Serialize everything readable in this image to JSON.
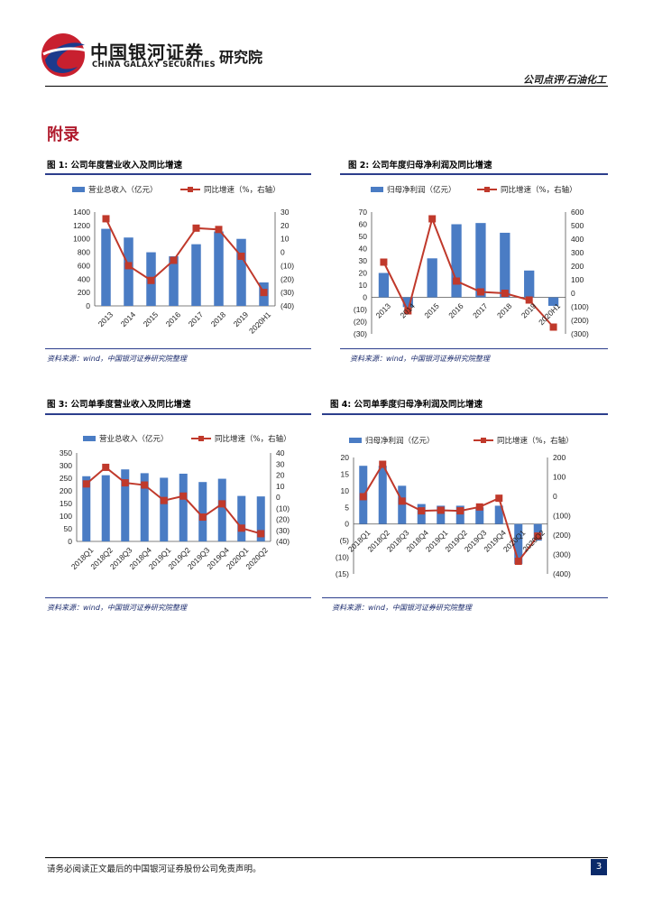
{
  "header": {
    "brand_cn": "中国银河证券",
    "brand_inst": "研究院",
    "brand_en": "CHINA GALAXY SECURITIES",
    "right_label": "公司点评/石油化工"
  },
  "section_title": "附录",
  "figures": [
    {
      "title": "图 1:  公司年度营业收入及同比增速",
      "source": "资料来源：wind，中国银河证券研究院整理"
    },
    {
      "title": "图 2:  公司年度归母净利润及同比增速",
      "source": "资料来源：wind，中国银河证券研究院整理"
    },
    {
      "title": "图 3:  公司单季度营业收入及同比增速",
      "source": "资料来源：wind，中国银河证券研究院整理"
    },
    {
      "title": "图 4:  公司单季度归母净利润及同比增速",
      "source": "资料来源：wind，中国银河证券研究院整理"
    }
  ],
  "footer": {
    "disclaimer": "请务必阅读正文最后的中国银河证券股份公司免责声明。",
    "page_number": "3"
  },
  "colors": {
    "bar": "#4a7cc4",
    "line": "#c0392b"
  },
  "chart_data": [
    {
      "type": "bar",
      "categories": [
        "2013",
        "2014",
        "2015",
        "2016",
        "2017",
        "2018",
        "2019",
        "2020H1"
      ],
      "series": [
        {
          "name": "营业总收入（亿元）",
          "axis": "left",
          "kind": "bar",
          "values": [
            1150,
            1020,
            800,
            740,
            920,
            1110,
            1000,
            350
          ]
        },
        {
          "name": "同比增速（%，右轴）",
          "axis": "right",
          "kind": "line",
          "values": [
            25,
            -10,
            -21,
            -6,
            18,
            17,
            -3,
            -30
          ]
        }
      ],
      "ylim_left": [
        0,
        1400
      ],
      "yticks_left": [
        "0",
        "200",
        "400",
        "600",
        "800",
        "1000",
        "1200",
        "1400"
      ],
      "ylim_right": [
        -40,
        30
      ],
      "yticks_right": [
        "(40)",
        "(30)",
        "(20)",
        "(10)",
        "0",
        "10",
        "20",
        "30"
      ]
    },
    {
      "type": "bar",
      "categories": [
        "2013",
        "2014",
        "2015",
        "2016",
        "2017",
        "2018",
        "2019",
        "2020H1"
      ],
      "series": [
        {
          "name": "归母净利润（亿元）",
          "axis": "left",
          "kind": "bar",
          "values": [
            20,
            -8,
            32,
            60,
            61,
            53,
            22,
            -7
          ]
        },
        {
          "name": "同比增速（%，右轴）",
          "axis": "right",
          "kind": "line",
          "values": [
            230,
            -130,
            550,
            90,
            10,
            0,
            -50,
            -250
          ]
        }
      ],
      "ylim_left": [
        -30,
        70
      ],
      "yticks_left": [
        "(30)",
        "(20)",
        "(10)",
        "0",
        "10",
        "20",
        "30",
        "40",
        "50",
        "60",
        "70"
      ],
      "ylim_right": [
        -300,
        600
      ],
      "yticks_right": [
        "(300)",
        "(200)",
        "(100)",
        "0",
        "100",
        "200",
        "300",
        "400",
        "500",
        "600"
      ]
    },
    {
      "type": "bar",
      "categories": [
        "2018Q1",
        "2018Q2",
        "2018Q3",
        "2018Q4",
        "2019Q1",
        "2019Q2",
        "2019Q3",
        "2019Q4",
        "2020Q1",
        "2020Q2"
      ],
      "series": [
        {
          "name": "营业总收入（亿元）",
          "axis": "left",
          "kind": "bar",
          "values": [
            258,
            262,
            285,
            270,
            252,
            268,
            235,
            248,
            180,
            178
          ]
        },
        {
          "name": "同比增速（%，右轴）",
          "axis": "right",
          "kind": "line",
          "values": [
            12,
            27,
            13,
            11,
            -3,
            1,
            -18,
            -6,
            -28,
            -33
          ]
        }
      ],
      "ylim_left": [
        0,
        350
      ],
      "yticks_left": [
        "0",
        "50",
        "100",
        "150",
        "200",
        "250",
        "300",
        "350"
      ],
      "ylim_right": [
        -40,
        40
      ],
      "yticks_right": [
        "(40)",
        "(30)",
        "(20)",
        "(10)",
        "0",
        "10",
        "20",
        "30",
        "40"
      ]
    },
    {
      "type": "bar",
      "categories": [
        "2018Q1",
        "2018Q2",
        "2018Q3",
        "2018Q4",
        "2019Q1",
        "2019Q2",
        "2019Q3",
        "2019Q4",
        "2020Q1",
        "2020Q2"
      ],
      "series": [
        {
          "name": "归母净利润（亿元）",
          "axis": "left",
          "kind": "bar",
          "values": [
            17.5,
            17.5,
            11.5,
            6,
            5.5,
            5.5,
            5,
            5.5,
            -12,
            -5
          ]
        },
        {
          "name": "同比增速（%，右轴）",
          "axis": "right",
          "kind": "line",
          "values": [
            -2,
            165,
            -25,
            -75,
            -72,
            -75,
            -55,
            -10,
            -335,
            -205
          ]
        }
      ],
      "ylim_left": [
        -15,
        20
      ],
      "yticks_left": [
        "(15)",
        "(10)",
        "(5)",
        "0",
        "5",
        "10",
        "15",
        "20"
      ],
      "ylim_right": [
        -400,
        200
      ],
      "yticks_right": [
        "(400)",
        "(300)",
        "(200)",
        "(100)",
        "0",
        "100",
        "200"
      ]
    }
  ]
}
